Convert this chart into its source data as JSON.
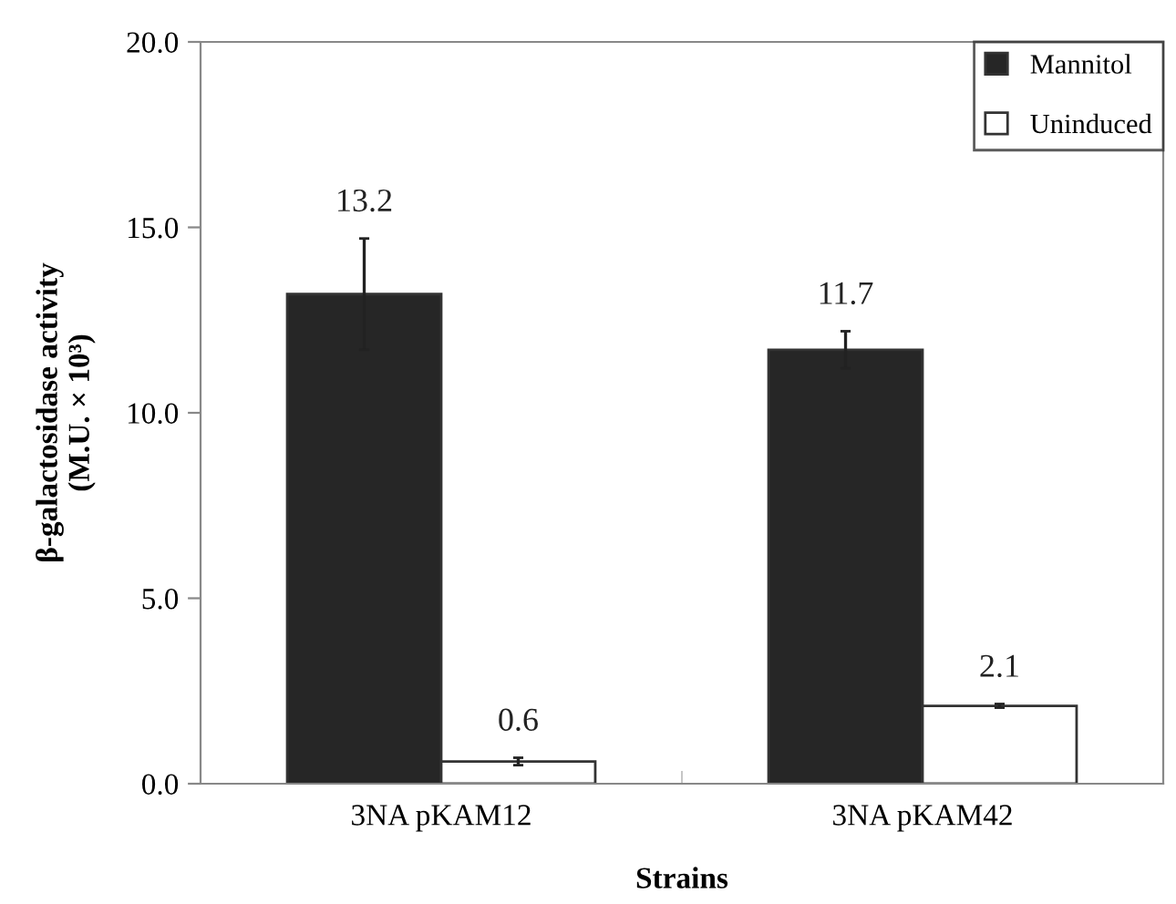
{
  "chart_data": {
    "type": "bar",
    "xlabel": "Strains",
    "ylabel": "β-galactosidase activity\n(M.U. × 10³)",
    "categories": [
      "3NA pKAM12",
      "3NA pKAM42"
    ],
    "series": [
      {
        "name": "Mannitol",
        "color": "#262626",
        "values": [
          13.2,
          11.7
        ],
        "errors": [
          1.5,
          0.5
        ]
      },
      {
        "name": "Uninduced",
        "color": "#ffffff",
        "values": [
          0.6,
          2.1
        ],
        "errors": [
          0.1,
          0.05
        ]
      }
    ],
    "ylim": [
      0,
      20
    ],
    "yticks": [
      {
        "value": 0,
        "label": "0.0"
      },
      {
        "value": 5,
        "label": "5.0"
      },
      {
        "value": 10,
        "label": "10.0"
      },
      {
        "value": 15,
        "label": "15.0"
      },
      {
        "value": 20,
        "label": "20.0"
      }
    ],
    "data_labels": true,
    "grid": false,
    "legend": "top right"
  }
}
